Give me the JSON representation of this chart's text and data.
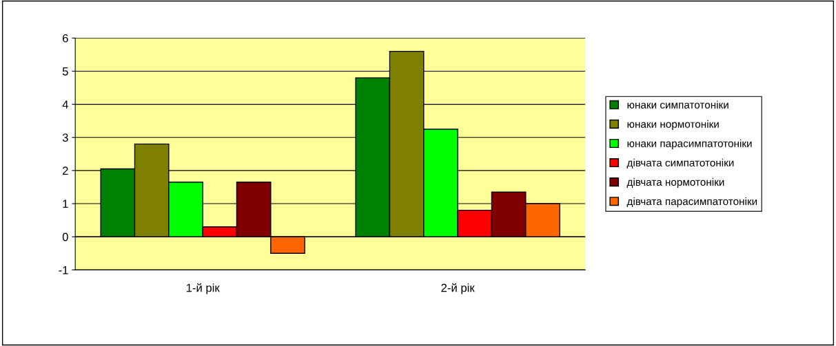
{
  "chart_data": {
    "type": "bar",
    "categories": [
      "1-й рік",
      "2-й рік"
    ],
    "series": [
      {
        "name": "юнаки симпатотоніки",
        "color": "#008000",
        "values": [
          2.05,
          4.8
        ]
      },
      {
        "name": "юнаки нормотоніки",
        "color": "#808000",
        "values": [
          2.8,
          5.6
        ]
      },
      {
        "name": "юнаки парасимпатотоніки",
        "color": "#00ff00",
        "values": [
          1.65,
          3.25
        ]
      },
      {
        "name": "дівчата симпатотоніки",
        "color": "#ff0000",
        "values": [
          0.3,
          0.8
        ]
      },
      {
        "name": "дівчата нормотоніки",
        "color": "#800000",
        "values": [
          1.65,
          1.35
        ]
      },
      {
        "name": "дівчата парасимпатотоніки",
        "color": "#ff6600",
        "values": [
          -0.5,
          1.0
        ]
      }
    ],
    "ylim": [
      -1,
      6
    ],
    "yticks": [
      -1,
      0,
      1,
      2,
      3,
      4,
      5,
      6
    ],
    "grid": "y",
    "legend": "right"
  }
}
